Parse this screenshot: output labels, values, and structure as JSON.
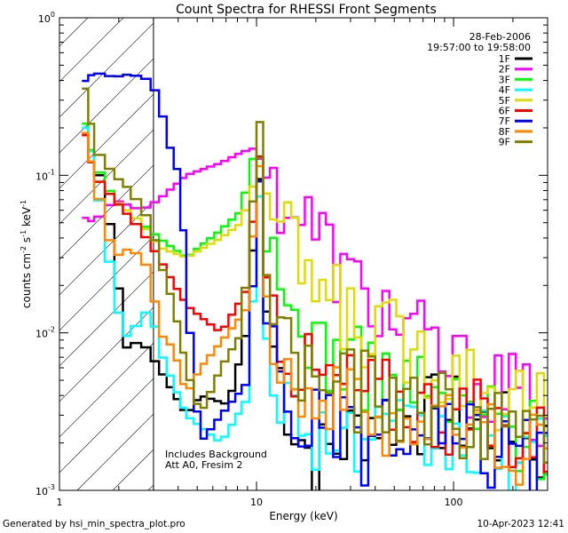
{
  "chart_data": {
    "type": "line",
    "title": "Count Spectra for RHESSI Front Segments",
    "xlabel": "Energy (keV)",
    "ylabel": {
      "base": "counts cm",
      "e1": "-2",
      "mid1": " s",
      "e2": "-1",
      "mid2": " keV",
      "e3": "-1"
    },
    "xscale": "log",
    "yscale": "log",
    "xlim": [
      1,
      300
    ],
    "ylim": [
      0.001,
      1
    ],
    "x_ticks": [
      "1",
      "10",
      "100"
    ],
    "y_ticks": [
      {
        "base": "10",
        "exp": "-3",
        "value": 0.001
      },
      {
        "base": "10",
        "exp": "-2",
        "value": 0.01
      },
      {
        "base": "10",
        "exp": "-1",
        "value": 0.1
      },
      {
        "base": "10",
        "exp": "0",
        "value": 1
      }
    ],
    "date": "28-Feb-2006",
    "time_range": "19:57:00 to 19:58:00",
    "annotations": [
      "Includes Background",
      "Att A0, Fresim 2"
    ],
    "hatch_limit_keV": 3,
    "energy_edges": [
      1.3,
      1.4,
      1.5,
      1.7,
      1.9,
      2.1,
      2.3,
      2.6,
      2.9,
      3.2,
      3.5,
      3.8,
      4.1,
      4.4,
      4.8,
      5.2,
      5.6,
      6.1,
      6.6,
      7.2,
      7.8,
      8.4,
      9.2,
      10.0,
      10.8,
      11.7,
      12.7,
      13.8,
      15.0,
      16.3,
      17.6,
      19.1,
      20.8,
      22.5,
      24.5,
      26.6,
      28.8,
      31.3,
      34.0,
      36.9,
      40.0,
      43.5,
      47.2,
      51.2,
      55.6,
      60.3,
      65.5,
      71.1,
      77.2,
      83.8,
      91.0,
      98.8,
      107.2,
      116.4,
      126.4,
      137.2,
      148.9,
      161.7,
      175.5,
      190.6,
      206.9,
      224.6,
      243.8,
      264.7,
      287.4,
      300.0
    ],
    "series": [
      {
        "name": "1F",
        "color": "#000000",
        "anchors": [
          [
            1.3,
            0.21
          ],
          [
            1.7,
            0.08
          ],
          [
            1.9,
            0.03
          ],
          [
            2.2,
            0.008
          ],
          [
            2.6,
            0.009
          ],
          [
            3.2,
            0.006
          ],
          [
            4.4,
            0.003
          ],
          [
            5.2,
            0.004
          ],
          [
            7.2,
            0.0035
          ],
          [
            9.2,
            0.012
          ],
          [
            10.2,
            0.15
          ],
          [
            11.3,
            0.012
          ],
          [
            15,
            0.003
          ],
          [
            20,
            0.0015
          ],
          [
            40,
            0.003
          ],
          [
            100,
            0.003
          ],
          [
            300,
            0.0018
          ]
        ]
      },
      {
        "name": "2F",
        "color": "#ff00ff",
        "anchors": [
          [
            1.3,
            0.055
          ],
          [
            1.5,
            0.05
          ],
          [
            1.9,
            0.07
          ],
          [
            2.6,
            0.06
          ],
          [
            3.2,
            0.07
          ],
          [
            4.4,
            0.1
          ],
          [
            6.6,
            0.12
          ],
          [
            8.4,
            0.14
          ],
          [
            10,
            0.15
          ],
          [
            11,
            0.1
          ],
          [
            13.8,
            0.07
          ],
          [
            20,
            0.045
          ],
          [
            30,
            0.02
          ],
          [
            40,
            0.016
          ],
          [
            60,
            0.01
          ],
          [
            100,
            0.006
          ],
          [
            200,
            0.004
          ],
          [
            300,
            0.003
          ]
        ]
      },
      {
        "name": "3F",
        "color": "#00ff00",
        "anchors": [
          [
            1.3,
            0.26
          ],
          [
            1.5,
            0.12
          ],
          [
            1.9,
            0.07
          ],
          [
            2.6,
            0.05
          ],
          [
            3.2,
            0.04
          ],
          [
            4.4,
            0.03
          ],
          [
            6.6,
            0.045
          ],
          [
            8.4,
            0.06
          ],
          [
            10.2,
            0.18
          ],
          [
            11.3,
            0.03
          ],
          [
            13.8,
            0.015
          ],
          [
            20,
            0.009
          ],
          [
            30,
            0.006
          ],
          [
            50,
            0.005
          ],
          [
            100,
            0.0035
          ],
          [
            200,
            0.0025
          ],
          [
            300,
            0.002
          ]
        ]
      },
      {
        "name": "4F",
        "color": "#00ffff",
        "anchors": [
          [
            1.3,
            0.24
          ],
          [
            1.5,
            0.12
          ],
          [
            1.7,
            0.04
          ],
          [
            1.9,
            0.02
          ],
          [
            2.1,
            0.009
          ],
          [
            2.6,
            0.012
          ],
          [
            2.9,
            0.015
          ],
          [
            3.2,
            0.008
          ],
          [
            4.4,
            0.003
          ],
          [
            6.6,
            0.002
          ],
          [
            9.2,
            0.004
          ],
          [
            10.2,
            0.12
          ],
          [
            11.3,
            0.008
          ],
          [
            15,
            0.003
          ],
          [
            30,
            0.002
          ],
          [
            100,
            0.002
          ],
          [
            300,
            0.0015
          ]
        ]
      },
      {
        "name": "5F",
        "color": "#dddd00",
        "anchors": [
          [
            1.3,
            0.23
          ],
          [
            1.5,
            0.1
          ],
          [
            1.9,
            0.07
          ],
          [
            2.6,
            0.05
          ],
          [
            3.2,
            0.035
          ],
          [
            4.4,
            0.03
          ],
          [
            6.6,
            0.04
          ],
          [
            8.4,
            0.05
          ],
          [
            10,
            0.1
          ],
          [
            11.7,
            0.07
          ],
          [
            13.8,
            0.04
          ],
          [
            20,
            0.02
          ],
          [
            30,
            0.012
          ],
          [
            50,
            0.009
          ],
          [
            100,
            0.006
          ],
          [
            200,
            0.004
          ],
          [
            300,
            0.003
          ]
        ]
      },
      {
        "name": "6F",
        "color": "#ff0000",
        "anchors": [
          [
            1.3,
            0.22
          ],
          [
            1.5,
            0.1
          ],
          [
            1.9,
            0.07
          ],
          [
            2.6,
            0.045
          ],
          [
            3.2,
            0.03
          ],
          [
            4.4,
            0.015
          ],
          [
            6.6,
            0.01
          ],
          [
            9.2,
            0.02
          ],
          [
            10.2,
            0.2
          ],
          [
            11.3,
            0.02
          ],
          [
            15,
            0.007
          ],
          [
            20,
            0.005
          ],
          [
            40,
            0.004
          ],
          [
            100,
            0.003
          ],
          [
            300,
            0.002
          ]
        ]
      },
      {
        "name": "7F",
        "color": "#0000ff",
        "anchors": [
          [
            1.3,
            0.38
          ],
          [
            1.5,
            0.45
          ],
          [
            1.9,
            0.42
          ],
          [
            2.3,
            0.44
          ],
          [
            2.9,
            0.4
          ],
          [
            3.2,
            0.3
          ],
          [
            3.8,
            0.12
          ],
          [
            4.1,
            0.1
          ],
          [
            4.4,
            0.02
          ],
          [
            4.8,
            0.005
          ],
          [
            5.2,
            0.002
          ],
          [
            6.6,
            0.003
          ],
          [
            9.2,
            0.005
          ],
          [
            10.2,
            0.15
          ],
          [
            11.3,
            0.01
          ],
          [
            15,
            0.003
          ],
          [
            30,
            0.002
          ],
          [
            100,
            0.002
          ],
          [
            300,
            0.0015
          ]
        ]
      },
      {
        "name": "8F",
        "color": "#ff8800",
        "anchors": [
          [
            1.3,
            0.23
          ],
          [
            1.5,
            0.1
          ],
          [
            1.7,
            0.05
          ],
          [
            1.9,
            0.03
          ],
          [
            2.3,
            0.035
          ],
          [
            2.9,
            0.025
          ],
          [
            3.2,
            0.01
          ],
          [
            3.8,
            0.008
          ],
          [
            4.4,
            0.004
          ],
          [
            5.2,
            0.006
          ],
          [
            7.2,
            0.01
          ],
          [
            9.2,
            0.015
          ],
          [
            10.2,
            0.18
          ],
          [
            11.3,
            0.015
          ],
          [
            15,
            0.005
          ],
          [
            20,
            0.004
          ],
          [
            40,
            0.003
          ],
          [
            100,
            0.0025
          ],
          [
            300,
            0.0018
          ]
        ]
      },
      {
        "name": "9F",
        "color": "#808000",
        "anchors": [
          [
            1.3,
            0.42
          ],
          [
            1.4,
            0.3
          ],
          [
            1.5,
            0.15
          ],
          [
            1.9,
            0.1
          ],
          [
            2.3,
            0.08
          ],
          [
            2.9,
            0.05
          ],
          [
            3.2,
            0.03
          ],
          [
            3.8,
            0.015
          ],
          [
            4.4,
            0.006
          ],
          [
            5.2,
            0.003
          ],
          [
            6.6,
            0.006
          ],
          [
            8.4,
            0.01
          ],
          [
            10.4,
            0.22
          ],
          [
            11.3,
            0.02
          ],
          [
            15,
            0.007
          ],
          [
            20,
            0.005
          ],
          [
            40,
            0.004
          ],
          [
            100,
            0.003
          ],
          [
            300,
            0.0022
          ]
        ]
      }
    ]
  },
  "footer": {
    "left": "Generated by hsi_min_spectra_plot.pro",
    "right": "10-Apr-2023 12:41"
  }
}
